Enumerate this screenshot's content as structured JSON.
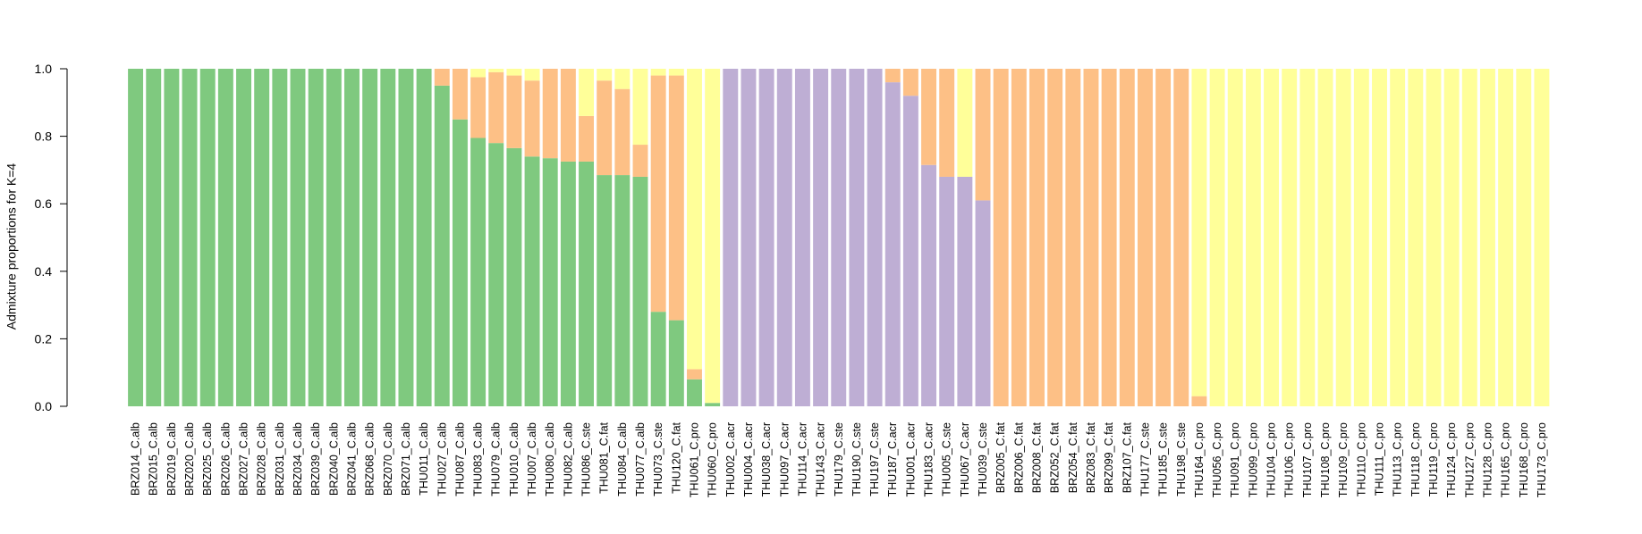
{
  "chart_data": {
    "type": "bar",
    "stacked": true,
    "title": "",
    "xlabel": "",
    "ylabel": "Admixture proportions for K=4",
    "ylim": [
      0,
      1
    ],
    "yticks": [
      "0.0",
      "0.2",
      "0.4",
      "0.6",
      "0.8",
      "1.0"
    ],
    "legend": "none",
    "grid": false,
    "categories": [
      "BRZ014_C.alb",
      "BRZ015_C.alb",
      "BRZ019_C.alb",
      "BRZ020_C.alb",
      "BRZ025_C.alb",
      "BRZ026_C.alb",
      "BRZ027_C.alb",
      "BRZ028_C.alb",
      "BRZ031_C.alb",
      "BRZ034_C.alb",
      "BRZ039_C.alb",
      "BRZ040_C.alb",
      "BRZ041_C.alb",
      "BRZ068_C.alb",
      "BRZ070_C.alb",
      "BRZ071_C.alb",
      "THU011_C.alb",
      "THU027_C.alb",
      "THU087_C.alb",
      "THU083_C.alb",
      "THU079_C.alb",
      "THU010_C.alb",
      "THU007_C.alb",
      "THU080_C.alb",
      "THU082_C.alb",
      "THU086_C.ste",
      "THU081_C.fat",
      "THU084_C.alb",
      "THU077_C.alb",
      "THU073_C.ste",
      "THU120_C.fat",
      "THU061_C.pro",
      "THU060_C.pro",
      "THU002_C.acr",
      "THU004_C.acr",
      "THU038_C.acr",
      "THU097_C.acr",
      "THU114_C.acr",
      "THU143_C.acr",
      "THU179_C.ste",
      "THU190_C.ste",
      "THU197_C.ste",
      "THU187_C.acr",
      "THU001_C.acr",
      "THU183_C.acr",
      "THU005_C.ste",
      "THU067_C.acr",
      "THU039_C.ste",
      "BRZ005_C.fat",
      "BRZ006_C.fat",
      "BRZ008_C.fat",
      "BRZ052_C.fat",
      "BRZ054_C.fat",
      "BRZ083_C.fat",
      "BRZ099_C.fat",
      "BRZ107_C.fat",
      "THU177_C.ste",
      "THU185_C.ste",
      "THU198_C.ste",
      "THU164_C.pro",
      "THU056_C.pro",
      "THU091_C.pro",
      "THU099_C.pro",
      "THU104_C.pro",
      "THU106_C.pro",
      "THU107_C.pro",
      "THU108_C.pro",
      "THU109_C.pro",
      "THU110_C.pro",
      "THU111_C.pro",
      "THU113_C.pro",
      "THU118_C.pro",
      "THU119_C.pro",
      "THU124_C.pro",
      "THU127_C.pro",
      "THU128_C.pro",
      "THU165_C.pro",
      "THU168_C.pro",
      "THU173_C.pro"
    ],
    "series": [
      {
        "color": "#7FC97F",
        "values": [
          1,
          1,
          1,
          1,
          1,
          1,
          1,
          1,
          1,
          1,
          1,
          1,
          1,
          1,
          1,
          1,
          1,
          0.95,
          0.85,
          0.795,
          0.78,
          0.765,
          0.74,
          0.735,
          0.725,
          0.725,
          0.685,
          0.685,
          0.68,
          0.28,
          0.255,
          0.08,
          0.01,
          0,
          0,
          0,
          0,
          0,
          0,
          0,
          0,
          0,
          0,
          0,
          0,
          0,
          0,
          0,
          0,
          0,
          0,
          0,
          0,
          0,
          0,
          0,
          0,
          0,
          0,
          0,
          0,
          0,
          0,
          0,
          0,
          0,
          0,
          0,
          0,
          0,
          0,
          0,
          0,
          0,
          0,
          0,
          0,
          0,
          0
        ]
      },
      {
        "color": "#BEAED4",
        "values": [
          0,
          0,
          0,
          0,
          0,
          0,
          0,
          0,
          0,
          0,
          0,
          0,
          0,
          0,
          0,
          0,
          0,
          0,
          0,
          0,
          0,
          0,
          0,
          0,
          0,
          0,
          0,
          0,
          0,
          0,
          0,
          0,
          0,
          1,
          1,
          1,
          1,
          1,
          1,
          1,
          1,
          1,
          0.96,
          0.92,
          0.715,
          0.68,
          0.68,
          0.61,
          0,
          0,
          0,
          0,
          0,
          0,
          0,
          0,
          0,
          0,
          0,
          0,
          0,
          0,
          0,
          0,
          0,
          0,
          0,
          0,
          0,
          0,
          0,
          0,
          0,
          0,
          0,
          0,
          0,
          0,
          0
        ]
      },
      {
        "color": "#FDC086",
        "values": [
          0,
          0,
          0,
          0,
          0,
          0,
          0,
          0,
          0,
          0,
          0,
          0,
          0,
          0,
          0,
          0,
          0,
          0.05,
          0.15,
          0.18,
          0.21,
          0.215,
          0.225,
          0.265,
          0.275,
          0.135,
          0.28,
          0.255,
          0.095,
          0.7,
          0.725,
          0.03,
          0,
          0,
          0,
          0,
          0,
          0,
          0,
          0,
          0,
          0,
          0.04,
          0.08,
          0.285,
          0.32,
          0,
          0.39,
          1,
          1,
          1,
          1,
          1,
          1,
          1,
          1,
          1,
          1,
          1,
          0.03,
          0,
          0,
          0,
          0,
          0,
          0,
          0,
          0,
          0,
          0,
          0,
          0,
          0,
          0,
          0,
          0,
          0,
          0,
          0
        ]
      },
      {
        "color": "#FFFF99",
        "values": [
          0,
          0,
          0,
          0,
          0,
          0,
          0,
          0,
          0,
          0,
          0,
          0,
          0,
          0,
          0,
          0,
          0,
          0,
          0,
          0.025,
          0.01,
          0.02,
          0.035,
          0,
          0,
          0.14,
          0.035,
          0.06,
          0.225,
          0.02,
          0.02,
          0.89,
          0.99,
          0,
          0,
          0,
          0,
          0,
          0,
          0,
          0,
          0,
          0,
          0,
          0,
          0,
          0.32,
          0,
          0,
          0,
          0,
          0,
          0,
          0,
          0,
          0,
          0,
          0,
          0,
          0.97,
          1,
          1,
          1,
          1,
          1,
          1,
          1,
          1,
          1,
          1,
          1,
          1,
          1,
          1,
          1,
          1,
          1,
          1,
          1
        ]
      }
    ]
  }
}
